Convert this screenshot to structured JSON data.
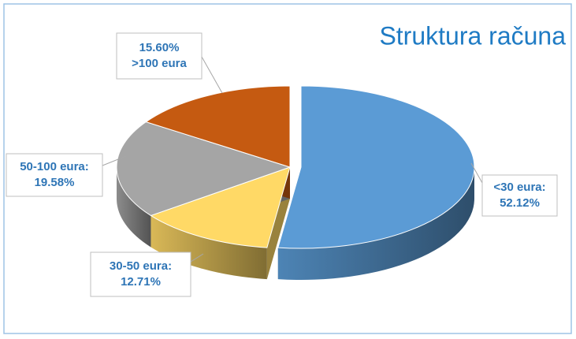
{
  "chart_data": {
    "type": "pie3d",
    "title": "Struktura računa",
    "categories": [
      "<30 eura:",
      "30-50 eura:",
      "50-100 eura:",
      ">100 eura"
    ],
    "values": [
      52.12,
      12.71,
      19.58,
      15.6
    ],
    "value_labels": [
      "52.12%",
      "12.71%",
      "19.58%",
      "15.60%"
    ],
    "colors": [
      "#5b9bd5",
      "#ffd966",
      "#a5a5a5",
      "#c55a11"
    ]
  }
}
